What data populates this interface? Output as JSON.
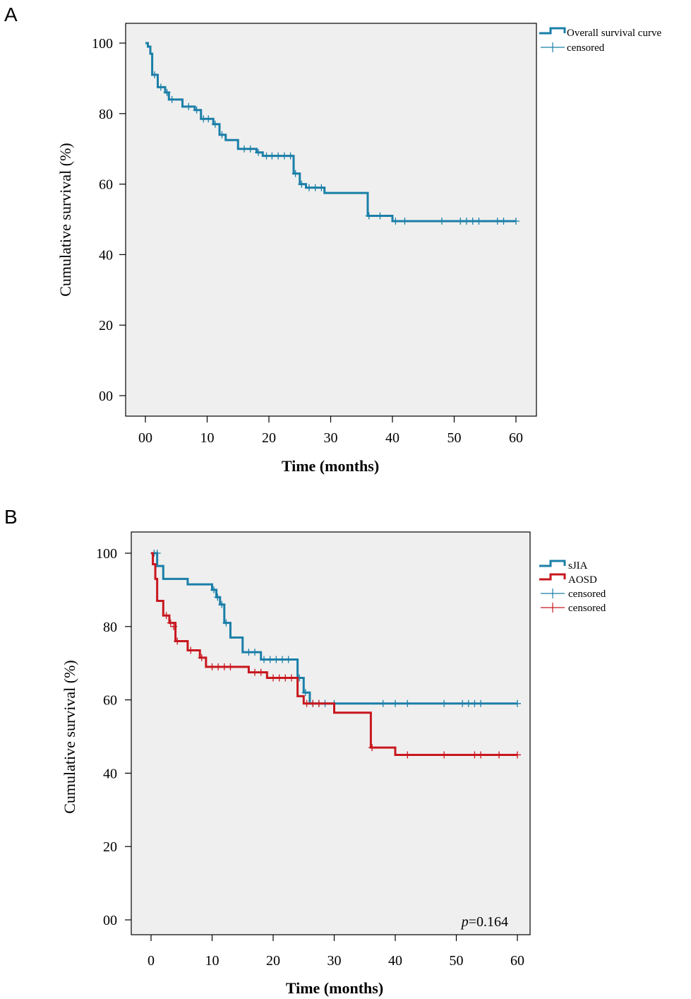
{
  "colors": {
    "teal": "#1a7fa8",
    "red": "#c8171e",
    "panel_bg": "#efefef",
    "axis": "#000000"
  },
  "chart_data": [
    {
      "type": "line",
      "panel_label": "A",
      "title": "",
      "xlabel": "Time (months)",
      "ylabel": "Cumulative survival (%)",
      "xlim": [
        0,
        60
      ],
      "ylim": [
        0,
        100
      ],
      "xticks": [
        0,
        10,
        20,
        30,
        40,
        50,
        60
      ],
      "xtick_labels": [
        "00",
        "10",
        "20",
        "30",
        "40",
        "50",
        "60"
      ],
      "yticks": [
        0,
        20,
        40,
        60,
        80,
        100
      ],
      "ytick_labels": [
        "00",
        "20",
        "40",
        "60",
        "80",
        "100"
      ],
      "legend": {
        "placement": "top-right, outside",
        "entries": [
          {
            "label": "Overall survival curve",
            "kind": "line",
            "color": "#1a7fa8"
          },
          {
            "label": "censored",
            "kind": "cross",
            "color": "#1a7fa8"
          }
        ]
      },
      "series": [
        {
          "name": "Overall survival curve",
          "color": "#1a7fa8",
          "steps": [
            [
              0,
              100
            ],
            [
              0.4,
              99
            ],
            [
              0.8,
              97
            ],
            [
              1.1,
              91
            ],
            [
              2.0,
              87.5
            ],
            [
              3.2,
              86
            ],
            [
              3.8,
              84
            ],
            [
              6.0,
              82
            ],
            [
              8.0,
              81
            ],
            [
              9.0,
              78.5
            ],
            [
              11.0,
              77
            ],
            [
              12.0,
              74
            ],
            [
              13.0,
              72.5
            ],
            [
              15.0,
              70
            ],
            [
              18.0,
              69
            ],
            [
              19.0,
              68
            ],
            [
              24.0,
              63
            ],
            [
              25.0,
              60
            ],
            [
              26.0,
              59
            ],
            [
              29.0,
              57.5
            ],
            [
              36.0,
              51
            ],
            [
              40.0,
              49.5
            ],
            [
              60.0,
              49.5
            ]
          ],
          "censored": [
            [
              1.5,
              91
            ],
            [
              2.5,
              87.5
            ],
            [
              3.5,
              86
            ],
            [
              4.3,
              84
            ],
            [
              7.0,
              82
            ],
            [
              8.3,
              81
            ],
            [
              9.4,
              78.5
            ],
            [
              10.2,
              78.5
            ],
            [
              11.3,
              77
            ],
            [
              12.4,
              74
            ],
            [
              16.0,
              70
            ],
            [
              17.0,
              70
            ],
            [
              18.3,
              69
            ],
            [
              19.6,
              68
            ],
            [
              20.5,
              68
            ],
            [
              21.5,
              68
            ],
            [
              22.5,
              68
            ],
            [
              23.5,
              68
            ],
            [
              24.3,
              63
            ],
            [
              25.3,
              60
            ],
            [
              26.5,
              59
            ],
            [
              27.5,
              59
            ],
            [
              28.5,
              59
            ],
            [
              36.2,
              51
            ],
            [
              38.0,
              51
            ],
            [
              40.5,
              49.5
            ],
            [
              42.0,
              49.5
            ],
            [
              48.0,
              49.5
            ],
            [
              51.0,
              49.5
            ],
            [
              52.0,
              49.5
            ],
            [
              53.0,
              49.5
            ],
            [
              54.0,
              49.5
            ],
            [
              57.0,
              49.5
            ],
            [
              58.0,
              49.5
            ],
            [
              60.0,
              49.5
            ]
          ]
        }
      ]
    },
    {
      "type": "line",
      "panel_label": "B",
      "title": "",
      "xlabel": "Time (months)",
      "ylabel": "Cumulative survival (%)",
      "xlim": [
        0,
        60
      ],
      "ylim": [
        0,
        100
      ],
      "xticks": [
        0,
        10,
        20,
        30,
        40,
        50,
        60
      ],
      "xtick_labels": [
        "0",
        "10",
        "20",
        "30",
        "40",
        "50",
        "60"
      ],
      "yticks": [
        0,
        20,
        40,
        60,
        80,
        100
      ],
      "ytick_labels": [
        "00",
        "20",
        "40",
        "60",
        "80",
        "100"
      ],
      "annotation": {
        "italic": "p",
        "text": "=0.164"
      },
      "legend": {
        "placement": "top-right, outside",
        "entries": [
          {
            "label": "sJIA",
            "kind": "line",
            "color": "#1a7fa8"
          },
          {
            "label": "AOSD",
            "kind": "line",
            "color": "#c8171e"
          },
          {
            "label": "censored",
            "kind": "cross",
            "color": "#1a7fa8"
          },
          {
            "label": "censored",
            "kind": "cross",
            "color": "#c8171e"
          }
        ]
      },
      "series": [
        {
          "name": "sJIA",
          "color": "#1a7fa8",
          "steps": [
            [
              0,
              100
            ],
            [
              1.0,
              96.5
            ],
            [
              2.0,
              93
            ],
            [
              6.0,
              91.5
            ],
            [
              10.0,
              90
            ],
            [
              10.7,
              88
            ],
            [
              11.3,
              86
            ],
            [
              12.0,
              81
            ],
            [
              13.0,
              77
            ],
            [
              15.0,
              73
            ],
            [
              18.0,
              71
            ],
            [
              24.0,
              66
            ],
            [
              25.0,
              62
            ],
            [
              26.0,
              59
            ],
            [
              60.0,
              59
            ]
          ],
          "censored": [
            [
              0.5,
              100
            ],
            [
              1.0,
              100
            ],
            [
              10.3,
              90
            ],
            [
              10.9,
              88
            ],
            [
              11.6,
              86
            ],
            [
              12.3,
              81
            ],
            [
              16.0,
              73
            ],
            [
              17.0,
              73
            ],
            [
              18.5,
              71
            ],
            [
              19.5,
              71
            ],
            [
              20.5,
              71
            ],
            [
              21.5,
              71
            ],
            [
              22.5,
              71
            ],
            [
              24.3,
              66
            ],
            [
              25.3,
              62
            ],
            [
              26.5,
              59
            ],
            [
              27.5,
              59
            ],
            [
              28.5,
              59
            ],
            [
              30.0,
              59
            ],
            [
              38.0,
              59
            ],
            [
              40.0,
              59
            ],
            [
              42.0,
              59
            ],
            [
              48.0,
              59
            ],
            [
              51.0,
              59
            ],
            [
              52.0,
              59
            ],
            [
              53.0,
              59
            ],
            [
              54.0,
              59
            ],
            [
              60.0,
              59
            ]
          ]
        },
        {
          "name": "AOSD",
          "color": "#c8171e",
          "steps": [
            [
              0,
              100
            ],
            [
              0.3,
              97
            ],
            [
              0.7,
              93
            ],
            [
              1.0,
              87
            ],
            [
              2.0,
              83
            ],
            [
              3.0,
              81
            ],
            [
              4.0,
              76
            ],
            [
              6.0,
              73.5
            ],
            [
              8.0,
              71.5
            ],
            [
              9.0,
              69
            ],
            [
              16.0,
              67.5
            ],
            [
              19.0,
              66
            ],
            [
              24.0,
              61
            ],
            [
              25.0,
              59
            ],
            [
              30.0,
              56.5
            ],
            [
              36.0,
              47
            ],
            [
              40.0,
              45
            ],
            [
              60.0,
              45
            ]
          ],
          "censored": [
            [
              2.5,
              83
            ],
            [
              3.2,
              81
            ],
            [
              3.7,
              80
            ],
            [
              4.3,
              76
            ],
            [
              6.5,
              73.5
            ],
            [
              8.3,
              71.5
            ],
            [
              10.0,
              69
            ],
            [
              11.0,
              69
            ],
            [
              12.0,
              69
            ],
            [
              13.0,
              69
            ],
            [
              17.0,
              67.5
            ],
            [
              18.0,
              67.5
            ],
            [
              20.0,
              66
            ],
            [
              21.0,
              66
            ],
            [
              22.0,
              66
            ],
            [
              23.0,
              66
            ],
            [
              25.5,
              59
            ],
            [
              26.5,
              59
            ],
            [
              27.5,
              59
            ],
            [
              36.2,
              47
            ],
            [
              42.0,
              45
            ],
            [
              48.0,
              45
            ],
            [
              53.0,
              45
            ],
            [
              54.0,
              45
            ],
            [
              57.0,
              45
            ],
            [
              60.0,
              45
            ]
          ]
        }
      ]
    }
  ]
}
